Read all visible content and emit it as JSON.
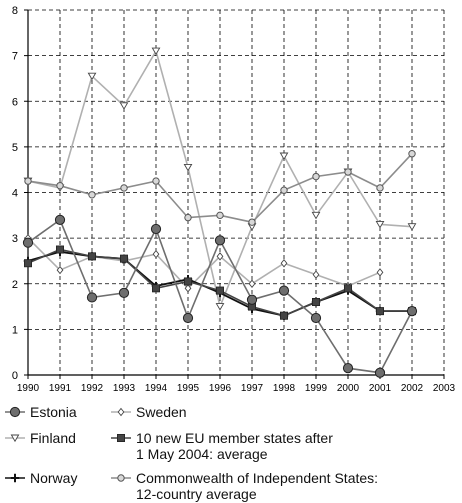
{
  "chart_data": {
    "type": "line",
    "title": "",
    "xlabel": "",
    "ylabel": "",
    "x": [
      1990,
      1991,
      1992,
      1993,
      1994,
      1995,
      1996,
      1997,
      1998,
      1999,
      2000,
      2001,
      2002
    ],
    "xlim": [
      1990,
      2003
    ],
    "ylim": [
      0,
      8
    ],
    "x_ticks": [
      "1990",
      "1991",
      "1992",
      "1993",
      "1994",
      "1995",
      "1996",
      "1997",
      "1998",
      "1999",
      "2000",
      "2001",
      "2002",
      "2003"
    ],
    "y_ticks": [
      "0",
      "1",
      "2",
      "3",
      "4",
      "5",
      "6",
      "7",
      "8"
    ],
    "grid": true,
    "legend_position": "bottom",
    "series": [
      {
        "name": "Estonia",
        "color": "#6e6e6e",
        "marker": "circle",
        "values": [
          2.9,
          3.4,
          1.7,
          1.8,
          3.2,
          1.25,
          2.95,
          1.65,
          1.85,
          1.25,
          0.15,
          0.05,
          1.4
        ]
      },
      {
        "name": "Sweden",
        "color": "#b0b0b0",
        "marker": "diamond",
        "values": [
          3.0,
          2.3,
          2.6,
          2.5,
          2.65,
          1.9,
          2.6,
          2.0,
          2.45,
          2.2,
          1.95,
          2.25,
          null
        ]
      },
      {
        "name": "Finland",
        "color": "#b0b0b0",
        "marker": "triangle-down",
        "values": [
          4.25,
          4.1,
          6.55,
          5.9,
          7.1,
          4.55,
          1.5,
          3.25,
          4.8,
          3.5,
          4.45,
          3.3,
          3.25
        ]
      },
      {
        "name": "10 new EU member states after\n1 May 2004: average",
        "color": "#444444",
        "marker": "square",
        "values": [
          2.45,
          2.75,
          2.6,
          2.55,
          1.9,
          2.05,
          1.85,
          1.5,
          1.3,
          1.6,
          1.9,
          1.4,
          1.4
        ]
      },
      {
        "name": "Norway",
        "color": "#111111",
        "marker": "plus",
        "values": [
          2.5,
          2.7,
          2.6,
          2.55,
          1.95,
          2.1,
          1.8,
          1.45,
          1.3,
          1.6,
          1.85,
          1.4,
          1.4
        ]
      },
      {
        "name": "Commonwealth of Independent States:\n12-country average",
        "color": "#8c8c8c",
        "marker": "circle-small",
        "values": [
          4.25,
          4.15,
          3.95,
          4.1,
          4.25,
          3.45,
          3.5,
          3.35,
          4.05,
          4.35,
          4.45,
          4.1,
          4.85
        ]
      }
    ]
  }
}
